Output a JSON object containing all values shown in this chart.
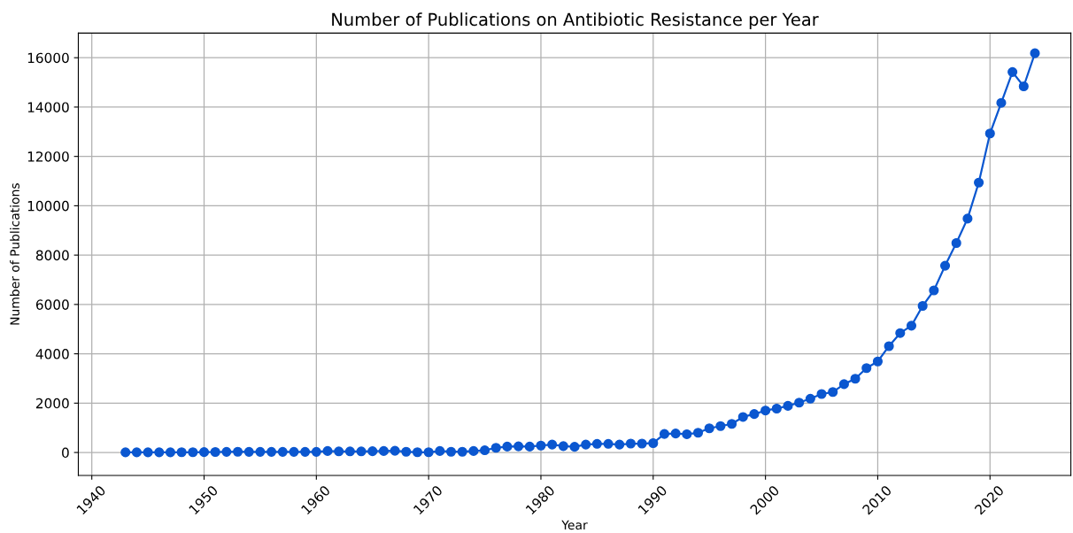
{
  "chart_data": {
    "type": "line",
    "title": "Number of Publications on Antibiotic Resistance per Year",
    "xlabel": "Year",
    "ylabel": "Number of Publications",
    "x": [
      1943,
      1944,
      1945,
      1946,
      1947,
      1948,
      1949,
      1950,
      1951,
      1952,
      1953,
      1954,
      1955,
      1956,
      1957,
      1958,
      1959,
      1960,
      1961,
      1962,
      1963,
      1964,
      1965,
      1966,
      1967,
      1968,
      1969,
      1970,
      1971,
      1972,
      1973,
      1974,
      1975,
      1976,
      1977,
      1978,
      1979,
      1980,
      1981,
      1982,
      1983,
      1984,
      1985,
      1986,
      1987,
      1988,
      1989,
      1990,
      1991,
      1992,
      1993,
      1994,
      1995,
      1996,
      1997,
      1998,
      1999,
      2000,
      2001,
      2002,
      2003,
      2004,
      2005,
      2006,
      2007,
      2008,
      2009,
      2010,
      2011,
      2012,
      2013,
      2014,
      2015,
      2016,
      2017,
      2018,
      2019,
      2020,
      2021,
      2022,
      2023,
      2024
    ],
    "series": [
      {
        "color": "#0b57d0",
        "values": [
          5,
          5,
          5,
          5,
          5,
          10,
          10,
          15,
          20,
          25,
          30,
          25,
          25,
          25,
          25,
          25,
          25,
          25,
          60,
          45,
          45,
          45,
          50,
          60,
          70,
          30,
          10,
          10,
          60,
          30,
          30,
          60,
          90,
          190,
          240,
          250,
          240,
          280,
          320,
          260,
          230,
          320,
          350,
          350,
          320,
          360,
          360,
          380,
          750,
          770,
          740,
          800,
          980,
          1070,
          1160,
          1440,
          1560,
          1700,
          1780,
          1890,
          2020,
          2180,
          2370,
          2450,
          2770,
          2990,
          3420,
          3690,
          4310,
          4840,
          5140,
          5940,
          6570,
          7570,
          8490,
          9480,
          10940,
          12930,
          14170,
          15420,
          14840,
          16180
        ]
      }
    ],
    "xlim": [
      1938.8,
      2027.2
    ],
    "ylim": [
      -930,
      17000
    ],
    "xticks": [
      1940,
      1950,
      1960,
      1970,
      1980,
      1990,
      2000,
      2010,
      2020
    ],
    "yticks": [
      0,
      2000,
      4000,
      6000,
      8000,
      10000,
      12000,
      14000,
      16000
    ],
    "grid": true,
    "marker": "circle",
    "line_style": "solid"
  }
}
